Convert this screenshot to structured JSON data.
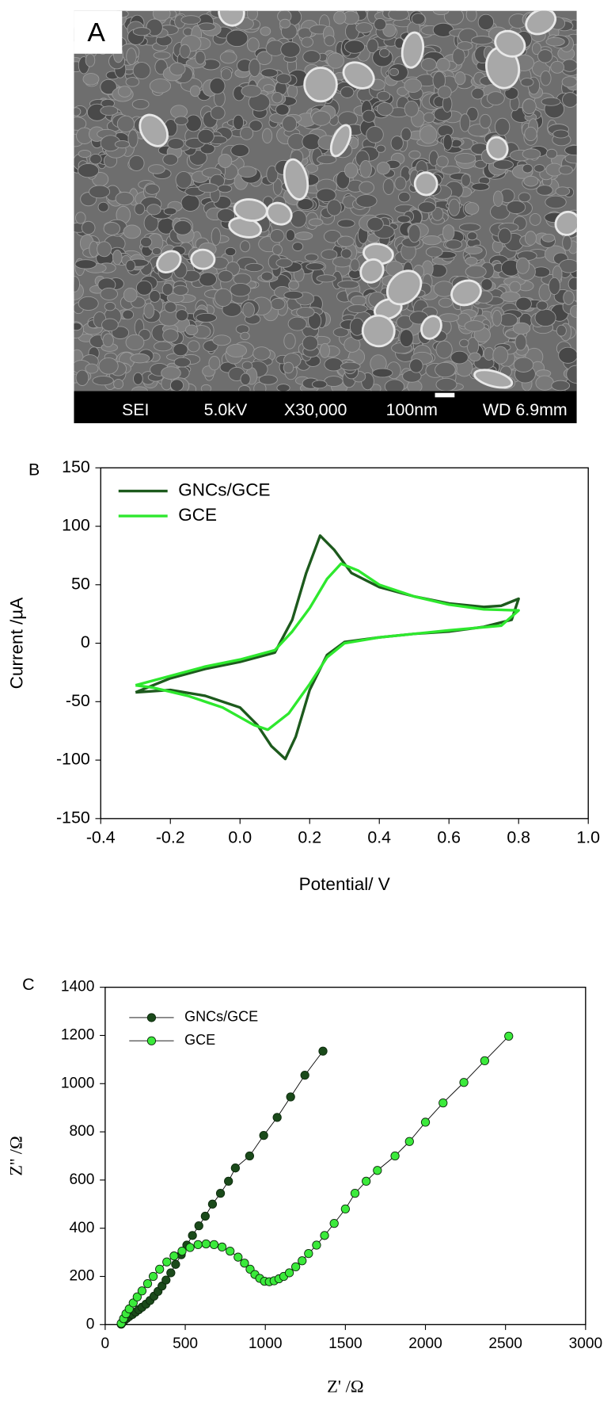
{
  "sem_image": {
    "label": "A",
    "info_bar": [
      "SEI",
      "5.0kV",
      "X30,000",
      "100nm",
      "WD 6.9mm"
    ]
  },
  "chart_data": [
    {
      "type": "line",
      "panel_label": "B",
      "xlabel": "Potential/ V",
      "ylabel": "Current /µA",
      "xlim": [
        -0.4,
        1.0
      ],
      "xticks": [
        -0.4,
        -0.2,
        {
          "value": 0,
          "label": "0.0"
        },
        0.2,
        0.4,
        0.6,
        0.8,
        {
          "value": 1,
          "label": "1.0"
        }
      ],
      "ylim": [
        -150,
        150
      ],
      "yticks": [
        -150,
        -100,
        -50,
        0,
        50,
        100,
        150
      ],
      "legend": "upper left",
      "series": [
        {
          "name": "GNCs/GCE",
          "color": "#1d5a1d",
          "x": [
            -0.3,
            -0.2,
            -0.1,
            0,
            0.1,
            0.15,
            0.19,
            0.23,
            0.27,
            0.32,
            0.4,
            0.5,
            0.6,
            0.7,
            0.75,
            0.8,
            0.78,
            0.7,
            0.6,
            0.5,
            0.4,
            0.3,
            0.25,
            0.2,
            0.16,
            0.13,
            0.09,
            0.05,
            0,
            -0.1,
            -0.2,
            -0.3
          ],
          "values": [
            -42,
            -30,
            -22,
            -16,
            -8,
            20,
            60,
            92,
            80,
            60,
            48,
            40,
            34,
            31,
            32,
            38,
            20,
            14,
            10,
            8,
            5,
            1,
            -10,
            -40,
            -80,
            -99,
            -88,
            -70,
            -55,
            -45,
            -40,
            -42
          ]
        },
        {
          "name": "GCE",
          "color": "#2ee82e",
          "x": [
            -0.3,
            -0.2,
            -0.1,
            0,
            0.1,
            0.15,
            0.2,
            0.25,
            0.29,
            0.34,
            0.4,
            0.5,
            0.6,
            0.7,
            0.8,
            0.75,
            0.6,
            0.5,
            0.4,
            0.3,
            0.25,
            0.2,
            0.14,
            0.08,
            0.04,
            -0.05,
            -0.15,
            -0.25,
            -0.3
          ],
          "values": [
            -36,
            -28,
            -20,
            -14,
            -6,
            10,
            30,
            55,
            68,
            62,
            50,
            40,
            33,
            29,
            28,
            15,
            11,
            8,
            5,
            0,
            -12,
            -35,
            -60,
            -74,
            -70,
            -55,
            -45,
            -38,
            -36
          ]
        }
      ]
    },
    {
      "type": "scatter",
      "panel_label": "C",
      "xlabel": "Z' /Ω",
      "ylabel": "Z'' /Ω",
      "xlim": [
        0,
        3000
      ],
      "xticks": [
        0,
        500,
        1000,
        1500,
        2000,
        2500,
        3000
      ],
      "ylim": [
        0,
        1400
      ],
      "yticks": [
        0,
        200,
        400,
        600,
        800,
        1000,
        1200,
        1400
      ],
      "legend": "upper left",
      "series": [
        {
          "name": "GNCs/GCE",
          "color": "#1a4a1a",
          "x": [
            100,
            110,
            120,
            135,
            150,
            170,
            190,
            210,
            230,
            255,
            280,
            305,
            330,
            355,
            380,
            410,
            440,
            475,
            510,
            545,
            585,
            625,
            670,
            720,
            770,
            813,
            902,
            990,
            1074,
            1158,
            1247,
            1360
          ],
          "values": [
            2,
            10,
            18,
            26,
            34,
            42,
            52,
            62,
            72,
            85,
            100,
            118,
            138,
            160,
            185,
            215,
            250,
            290,
            330,
            370,
            410,
            450,
            500,
            545,
            595,
            650,
            700,
            785,
            860,
            945,
            1035,
            1135
          ]
        },
        {
          "name": "GCE",
          "color": "#3bea3b",
          "x": [
            100,
            115,
            130,
            150,
            175,
            200,
            230,
            265,
            300,
            340,
            385,
            430,
            480,
            530,
            580,
            630,
            680,
            730,
            780,
            830,
            870,
            905,
            935,
            965,
            995,
            1025,
            1055,
            1085,
            1115,
            1150,
            1190,
            1230,
            1270,
            1320,
            1370,
            1430,
            1500,
            1560,
            1630,
            1700,
            1810,
            1900,
            2000,
            2110,
            2240,
            2370,
            2520
          ],
          "values": [
            5,
            25,
            45,
            65,
            90,
            115,
            140,
            170,
            200,
            230,
            260,
            285,
            305,
            320,
            332,
            335,
            332,
            322,
            305,
            280,
            255,
            230,
            208,
            192,
            180,
            178,
            182,
            190,
            200,
            215,
            240,
            265,
            295,
            330,
            370,
            420,
            480,
            545,
            595,
            640,
            700,
            760,
            840,
            920,
            1005,
            1095,
            1197
          ]
        }
      ]
    }
  ]
}
